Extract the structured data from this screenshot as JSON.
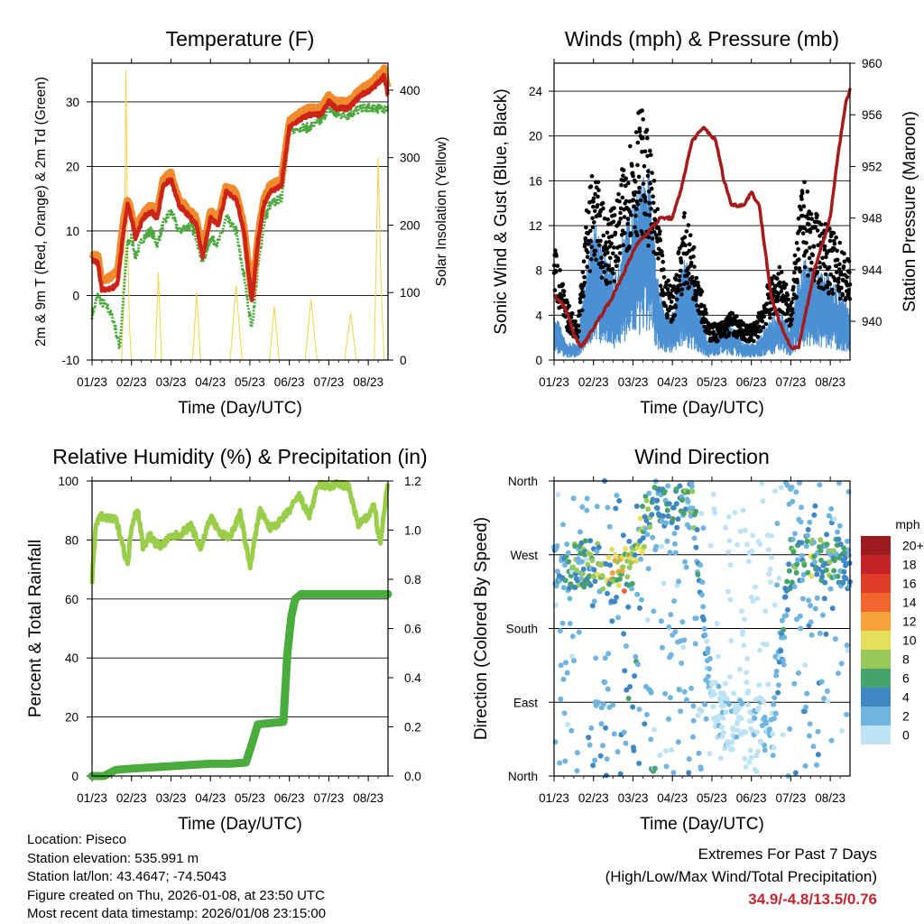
{
  "chart_data": [
    {
      "type": "line",
      "title": "Temperature (F)",
      "xlabel": "Time (Day/UTC)",
      "ylabel": "2m & 9m T (Red, Orange) & 2m Td (Green)",
      "ylabel_right": "Solar Insolation (Yellow)",
      "ylim": [
        -10,
        36
      ],
      "ylim_right": [
        0,
        440
      ],
      "yticks": [
        -10,
        0,
        10,
        20,
        30
      ],
      "yticks_right": [
        0,
        100,
        200,
        300,
        400
      ],
      "categories": [
        "01/23",
        "02/23",
        "03/23",
        "04/23",
        "05/23",
        "06/23",
        "07/23",
        "08/23"
      ],
      "series": [
        {
          "name": "2m T",
          "color": "#cc2418",
          "x": [
            0,
            0.15,
            0.25,
            0.35,
            0.5,
            0.65,
            0.8,
            0.9,
            1.0,
            1.1,
            1.3,
            1.5,
            1.65,
            1.8,
            2.0,
            2.2,
            2.5,
            2.65,
            2.8,
            3.0,
            3.2,
            3.4,
            3.65,
            3.85,
            4.05,
            4.2,
            4.35,
            4.5,
            4.8,
            5.0,
            5.2,
            5.5,
            5.8,
            6.0,
            6.2,
            6.5,
            6.8,
            7.1,
            7.25,
            7.4,
            7.5
          ],
          "y": [
            5.5,
            5,
            1,
            1,
            1,
            2,
            10,
            14,
            12,
            9,
            12,
            13,
            12,
            17,
            18,
            14,
            12,
            11,
            6,
            12,
            11,
            16,
            15,
            10,
            -1,
            8,
            14,
            16,
            17,
            26,
            27,
            28,
            28,
            30,
            29,
            29,
            31,
            32,
            33,
            34,
            31
          ]
        },
        {
          "name": "9m T",
          "color": "#f08a2a",
          "x": [
            0,
            0.15,
            0.25,
            0.35,
            0.5,
            0.65,
            0.8,
            0.9,
            1.0,
            1.1,
            1.3,
            1.5,
            1.65,
            1.8,
            2.0,
            2.2,
            2.5,
            2.65,
            2.8,
            3.0,
            3.2,
            3.4,
            3.65,
            3.85,
            4.05,
            4.2,
            4.35,
            4.5,
            4.8,
            5.0,
            5.2,
            5.5,
            5.8,
            6.0,
            6.2,
            6.5,
            6.8,
            7.1,
            7.25,
            7.4,
            7.5
          ],
          "y": [
            6.5,
            6,
            2.5,
            2.5,
            3,
            4,
            12,
            15,
            13,
            10,
            13,
            14,
            13,
            18,
            19,
            15,
            13,
            12,
            7,
            13,
            12,
            17,
            16,
            11,
            0,
            9,
            15,
            17,
            18,
            27,
            28,
            29,
            29,
            31,
            30,
            30,
            32,
            33,
            34,
            35,
            32
          ]
        },
        {
          "name": "2m Td",
          "color": "#4aa83c",
          "x": [
            0,
            0.15,
            0.25,
            0.4,
            0.55,
            0.7,
            0.8,
            0.9,
            1.0,
            1.1,
            1.3,
            1.5,
            1.65,
            1.8,
            2.0,
            2.2,
            2.5,
            2.65,
            2.8,
            3.0,
            3.2,
            3.4,
            3.65,
            3.85,
            4.05,
            4.2,
            4.35,
            4.5,
            4.8,
            5.0,
            5.2,
            5.5,
            5.8,
            6.0,
            6.2,
            6.5,
            6.8,
            7.1,
            7.25,
            7.4,
            7.5
          ],
          "y": [
            -3,
            0,
            -1,
            -2,
            -4,
            -8,
            0,
            8,
            9,
            6,
            9,
            10,
            8,
            11,
            13,
            10,
            11,
            9,
            5,
            9,
            8,
            12,
            10,
            3,
            -5,
            4,
            11,
            14,
            15,
            25,
            26,
            26,
            27,
            29,
            28,
            28,
            29,
            29,
            29,
            29,
            29
          ]
        },
        {
          "name": "Solar Insolation",
          "color": "#f3d34a",
          "axis": "right",
          "x": [
            0.75,
            0.82,
            0.86,
            0.9,
            0.95,
            1.0,
            1.6,
            1.68,
            1.76,
            2.55,
            2.65,
            2.75,
            3.5,
            3.65,
            3.8,
            4.5,
            4.62,
            4.74,
            5.4,
            5.55,
            5.7,
            6.4,
            6.55,
            6.7,
            7.15,
            7.25,
            7.32,
            7.4
          ],
          "y": [
            0,
            120,
            430,
            180,
            50,
            0,
            0,
            130,
            0,
            0,
            100,
            0,
            0,
            110,
            0,
            0,
            80,
            0,
            0,
            90,
            0,
            0,
            70,
            0,
            0,
            300,
            120,
            0
          ]
        }
      ]
    },
    {
      "type": "scatter",
      "title": "Winds (mph) & Pressure (mb)",
      "xlabel": "Time (Day/UTC)",
      "ylabel": "Sonic Wind & Gust (Blue, Black)",
      "ylabel_right": "Station Pressure (Maroon)",
      "ylim": [
        0,
        26.5
      ],
      "ylim_right": [
        937,
        960
      ],
      "yticks": [
        0,
        4,
        8,
        12,
        16,
        20,
        24
      ],
      "yticks_right": [
        940,
        944,
        948,
        952,
        956,
        960
      ],
      "categories": [
        "01/23",
        "02/23",
        "03/23",
        "04/23",
        "05/23",
        "06/23",
        "07/23",
        "08/23"
      ],
      "series": [
        {
          "name": "Sonic Wind",
          "color": "#4a90d2",
          "x": [
            0,
            0.3,
            0.6,
            0.8,
            1.0,
            1.3,
            1.6,
            1.8,
            2.0,
            2.2,
            2.4,
            2.6,
            2.8,
            3.0,
            3.3,
            3.6,
            3.9,
            4.2,
            4.5,
            4.8,
            5.1,
            5.4,
            5.7,
            6.0,
            6.3,
            6.6,
            6.9,
            7.2,
            7.5
          ],
          "y": [
            3,
            1,
            1,
            5,
            8,
            6,
            5,
            8,
            9,
            10,
            11,
            5,
            3,
            3,
            6,
            4,
            1,
            2,
            2,
            1,
            1,
            2,
            3,
            2,
            6,
            5,
            5,
            4,
            3
          ]
        },
        {
          "name": "Gust",
          "color": "#000000",
          "x": [
            0,
            0.3,
            0.6,
            0.8,
            1.0,
            1.3,
            1.6,
            1.8,
            2.0,
            2.2,
            2.4,
            2.6,
            2.8,
            3.0,
            3.3,
            3.6,
            3.9,
            4.2,
            4.5,
            4.8,
            5.1,
            5.4,
            5.7,
            6.0,
            6.3,
            6.6,
            6.9,
            7.2,
            7.5
          ],
          "y": [
            10,
            5,
            3,
            12,
            16,
            12,
            13,
            17,
            19,
            21,
            18,
            13,
            7,
            6,
            12,
            9,
            3,
            3,
            4,
            3,
            3,
            6,
            8,
            5,
            15,
            12,
            11,
            10,
            8
          ]
        },
        {
          "name": "Station Pressure",
          "color": "#a31b1b",
          "axis": "right",
          "x": [
            0,
            0.3,
            0.5,
            0.7,
            0.9,
            1.1,
            1.3,
            1.5,
            1.8,
            2.1,
            2.4,
            2.7,
            3.0,
            3.2,
            3.5,
            3.8,
            4.1,
            4.3,
            4.5,
            4.8,
            5.0,
            5.2,
            5.5,
            5.7,
            6.0,
            6.2,
            6.4,
            6.6,
            6.8,
            7.0,
            7.2,
            7.4,
            7.5
          ],
          "y": [
            942,
            941,
            939,
            938,
            939,
            940,
            941,
            942,
            944,
            946,
            947,
            948,
            948,
            950,
            954,
            955,
            954,
            951,
            949,
            949,
            950,
            949,
            942,
            940,
            938,
            938,
            941,
            944,
            946,
            948,
            953,
            957,
            958
          ]
        }
      ]
    },
    {
      "type": "line",
      "title": "Relative Humidity (%) & Precipitation (in)",
      "xlabel": "Time (Day/UTC)",
      "ylabel": "Percent & Total Rainfall",
      "ylim": [
        0,
        100
      ],
      "ylim_right": [
        0,
        1.2
      ],
      "yticks": [
        0,
        20,
        40,
        60,
        80,
        100
      ],
      "yticks_right": [
        0.0,
        0.2,
        0.4,
        0.6,
        0.8,
        1.0,
        1.2
      ],
      "categories": [
        "01/23",
        "02/23",
        "03/23",
        "04/23",
        "05/23",
        "06/23",
        "07/23",
        "08/23"
      ],
      "series": [
        {
          "name": "Relative Humidity",
          "color": "#9acd4a",
          "x": [
            0,
            0.1,
            0.25,
            0.4,
            0.6,
            0.75,
            0.9,
            1.0,
            1.15,
            1.3,
            1.45,
            1.6,
            1.75,
            2.0,
            2.25,
            2.5,
            2.75,
            3.0,
            3.25,
            3.5,
            3.75,
            4.0,
            4.25,
            4.5,
            4.75,
            5.0,
            5.25,
            5.5,
            5.75,
            6.0,
            6.25,
            6.5,
            6.75,
            7.0,
            7.15,
            7.3,
            7.5
          ],
          "y": [
            66,
            86,
            88,
            87,
            87,
            80,
            71,
            85,
            91,
            77,
            82,
            79,
            78,
            81,
            82,
            85,
            77,
            88,
            82,
            81,
            89,
            71,
            90,
            84,
            86,
            90,
            95,
            88,
            99,
            98,
            99,
            98,
            85,
            88,
            92,
            78,
            100
          ]
        },
        {
          "name": "Total Rainfall",
          "color": "#4aac3c",
          "axis": "right",
          "x": [
            0,
            0.3,
            0.6,
            1.0,
            1.5,
            2.0,
            2.5,
            3.0,
            3.5,
            3.9,
            4.05,
            4.2,
            4.5,
            4.85,
            4.95,
            5.05,
            5.15,
            5.3,
            5.5,
            6.0,
            6.5,
            7.0,
            7.5
          ],
          "y": [
            0.0,
            0.0,
            0.025,
            0.03,
            0.035,
            0.04,
            0.045,
            0.05,
            0.05,
            0.055,
            0.13,
            0.21,
            0.215,
            0.22,
            0.5,
            0.65,
            0.72,
            0.74,
            0.74,
            0.74,
            0.74,
            0.74,
            0.74
          ]
        }
      ]
    },
    {
      "type": "scatter",
      "title": "Wind Direction",
      "xlabel": "Time (Day/UTC)",
      "ylabel": "Direction (Colored By Speed)",
      "yticks_labels": [
        "North",
        "East",
        "South",
        "West",
        "North"
      ],
      "ylim": [
        0,
        360
      ],
      "categories": [
        "01/23",
        "02/23",
        "03/23",
        "04/23",
        "05/23",
        "06/23",
        "07/23",
        "08/23"
      ],
      "colorbar": {
        "title": "mph",
        "labels": [
          "20+",
          "18",
          "16",
          "14",
          "12",
          "10",
          "8",
          "6",
          "4",
          "2",
          "0"
        ],
        "colors": [
          "#9b1b1f",
          "#c4232a",
          "#e03c2a",
          "#f0662e",
          "#f6a33c",
          "#e5e05a",
          "#98c95a",
          "#46a36b",
          "#3f87c2",
          "#6fb5e0",
          "#bee3f5"
        ]
      },
      "series": [
        {
          "name": "Direction",
          "x": [
            0,
            0.5,
            1.0,
            1.5,
            2.0,
            2.5,
            3.0,
            3.5,
            4.0,
            4.5,
            5.0,
            5.5,
            6.0,
            6.5,
            7.0,
            7.5
          ],
          "y": [
            250,
            260,
            255,
            250,
            260,
            345,
            320,
            340,
            90,
            60,
            80,
            50,
            260,
            265,
            270,
            255
          ],
          "speed": [
            4,
            7,
            8,
            10,
            12,
            6,
            5,
            7,
            1,
            1,
            1,
            2,
            6,
            8,
            7,
            4
          ]
        }
      ]
    }
  ],
  "info": {
    "location": "Location: Piseco",
    "elevation": "Station elevation: 535.991 m",
    "latlon": "Station lat/lon: 43.4647; -74.5043",
    "created": "Figure created on Thu, 2026-01-08, at 23:50 UTC",
    "recent": "Most recent data timestamp: 2026/01/08 23:15:00"
  },
  "extremes": {
    "title": "Extremes For Past 7 Days",
    "subtitle": "(High/Low/Max Wind/Total Precipitation)",
    "values": "34.9/-4.8/13.5/0.76"
  }
}
